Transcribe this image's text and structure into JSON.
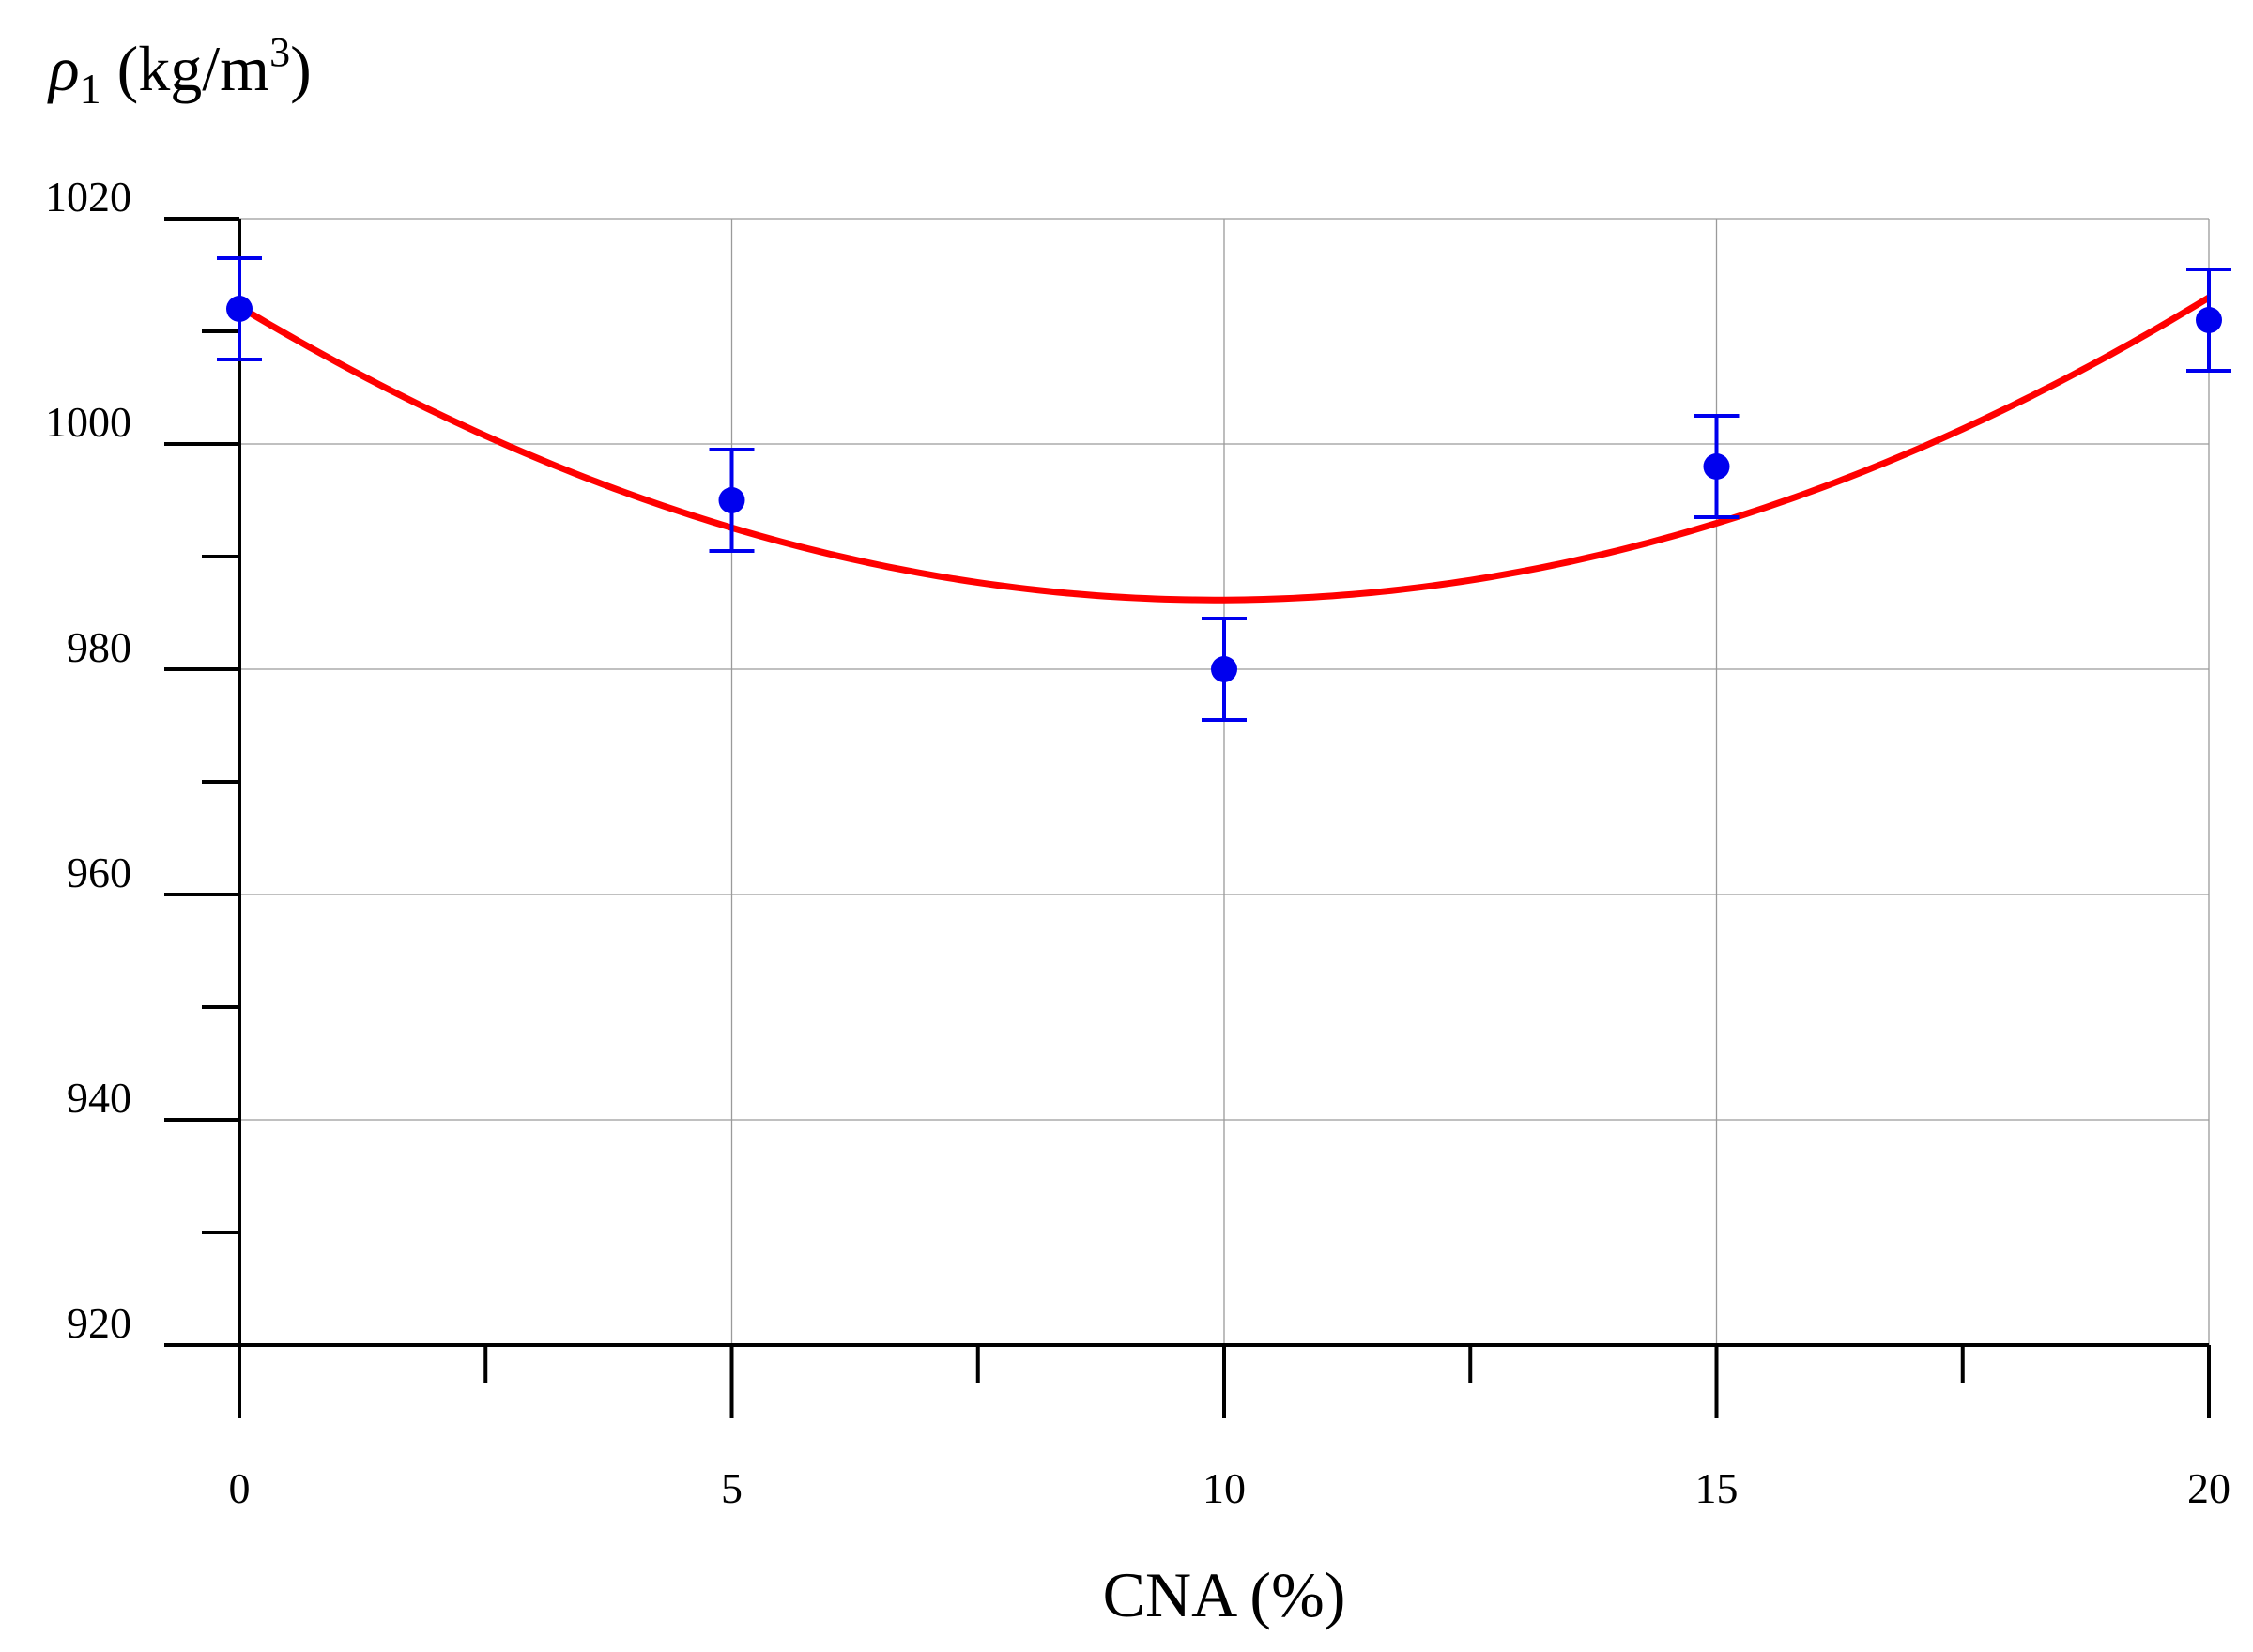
{
  "chart_data": {
    "type": "scatter",
    "ylabel_symbol": "ρ",
    "ylabel_subscript": "1",
    "ylabel_unit_open": " (kg/m",
    "ylabel_unit_sup": "3",
    "ylabel_unit_close": ")",
    "xlabel": "CNA (%)",
    "xlim": [
      0,
      20
    ],
    "ylim": [
      920,
      1020
    ],
    "x_ticks": [
      0,
      5,
      10,
      15,
      20
    ],
    "x_tick_labels": [
      "0",
      "5",
      "10",
      "15",
      "20"
    ],
    "x_minor_ticks": [
      2.5,
      7.5,
      12.5,
      17.5
    ],
    "y_ticks": [
      920,
      940,
      960,
      980,
      1000,
      1020
    ],
    "y_tick_labels": [
      "920",
      "940",
      "960",
      "980",
      "1000",
      "1020"
    ],
    "y_minor_ticks": [
      930,
      950,
      970,
      990,
      1010
    ],
    "grid": true,
    "series": [
      {
        "kind": "points_with_error_bars",
        "color": "#0000ee",
        "x": [
          0,
          5,
          10,
          15,
          20
        ],
        "y": [
          1012,
          995,
          980,
          998,
          1011
        ],
        "error": [
          4.5,
          4.5,
          4.5,
          4.5,
          4.5
        ]
      },
      {
        "kind": "fit_curve",
        "color": "#ff0000",
        "model": "quadratic",
        "coefficients": [
          1012.2,
          -5.25,
          0.2645
        ]
      }
    ]
  }
}
